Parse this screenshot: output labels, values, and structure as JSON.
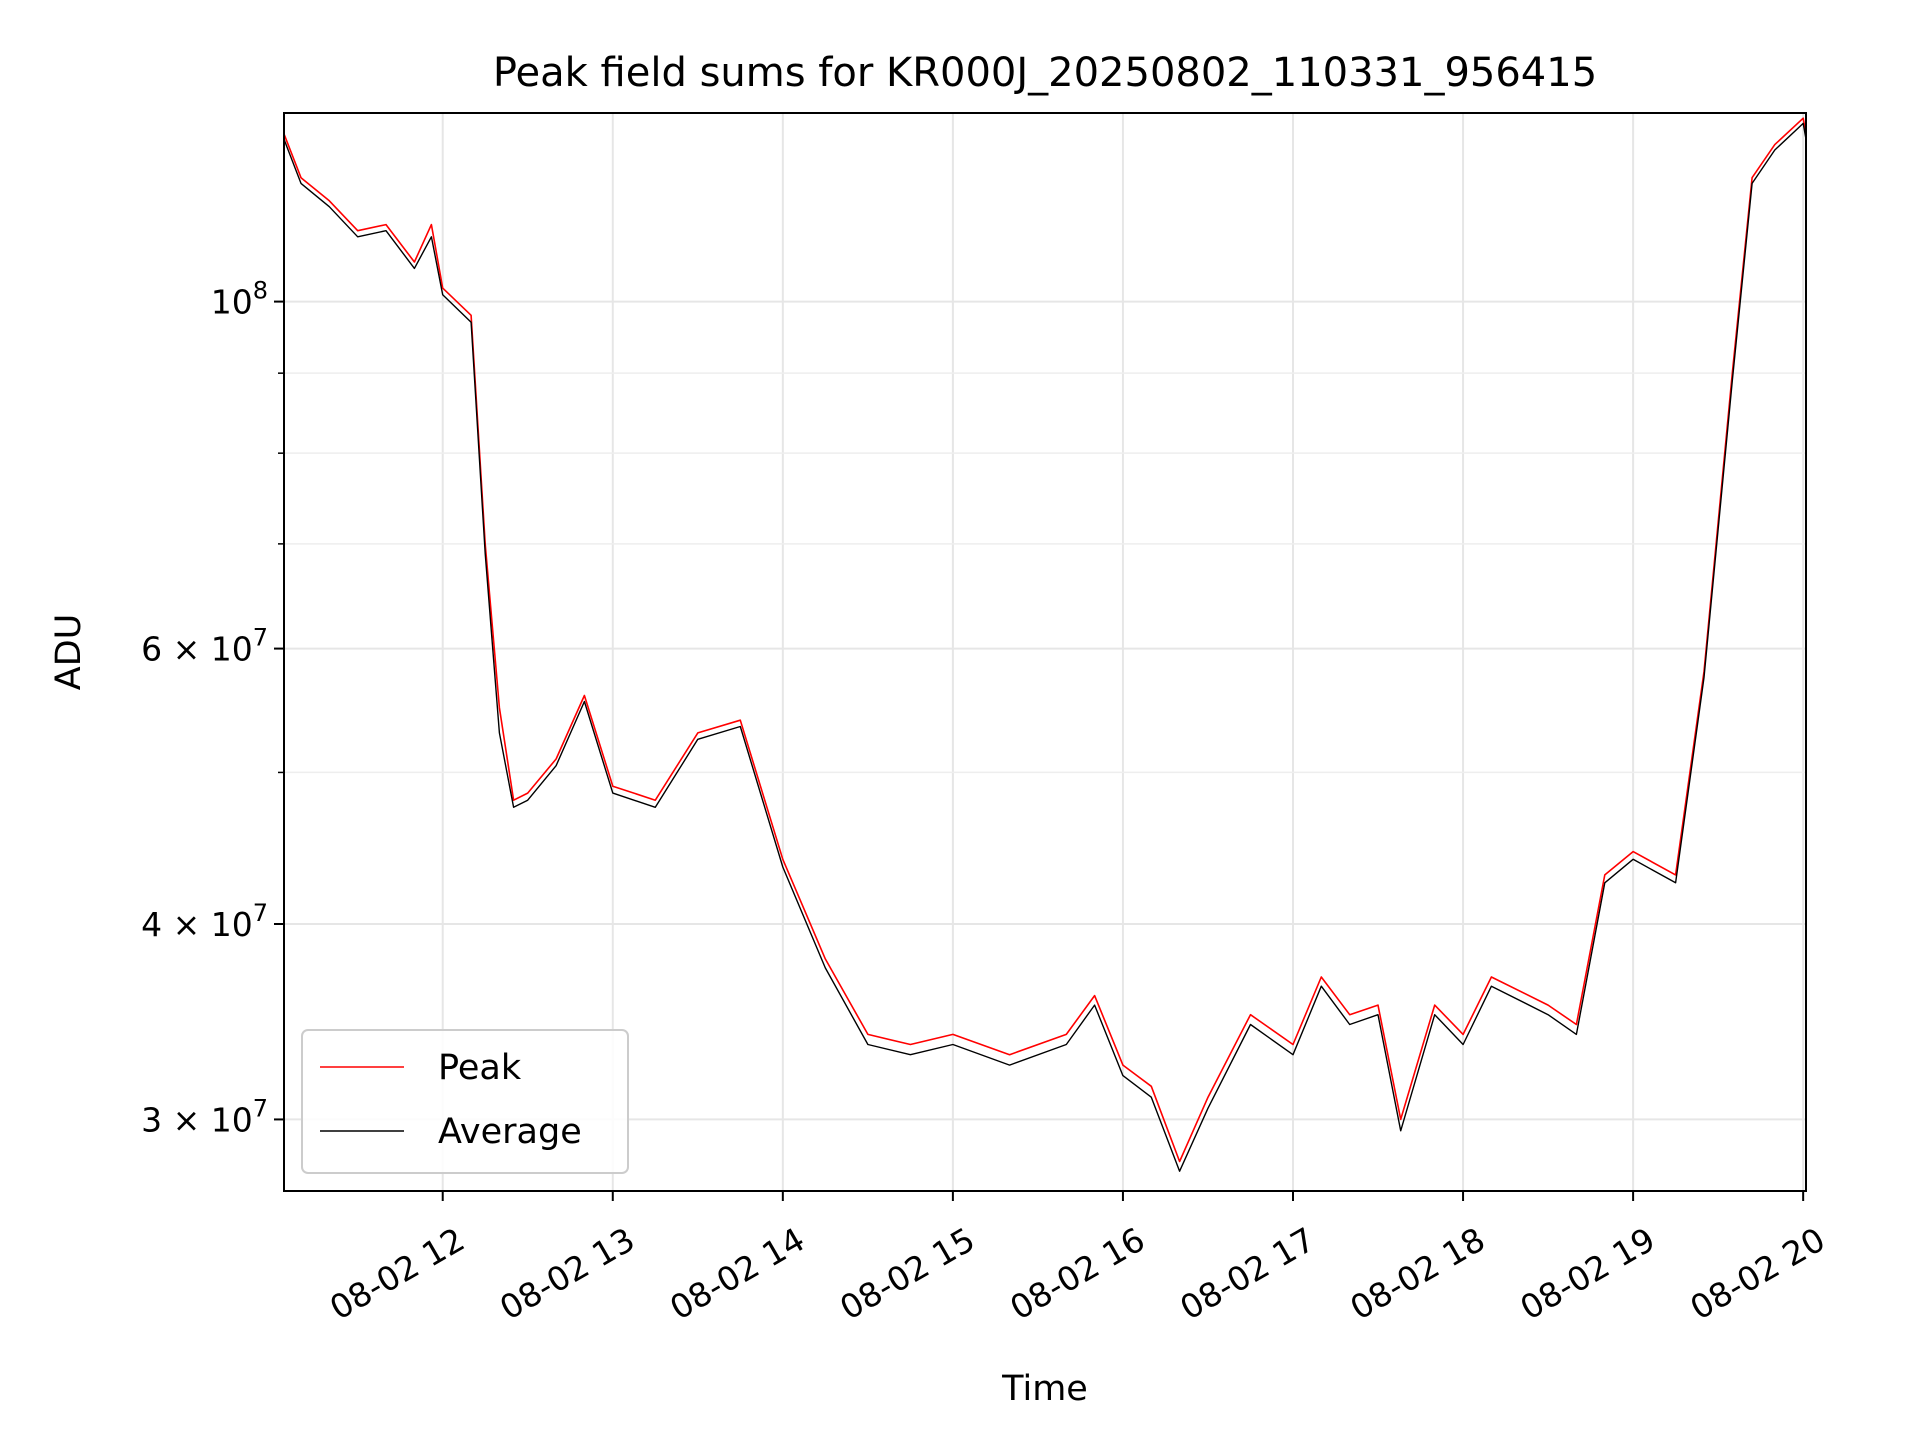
{
  "chart_data": {
    "type": "line",
    "title": "Peak field sums for KR000J_20250802_110331_956415",
    "xlabel": "Time",
    "ylabel": "ADU",
    "yscale": "log",
    "ylim": [
      27000000,
      132000000
    ],
    "xlim": [
      "08-02 11:04",
      "08-02 20:01"
    ],
    "grid": true,
    "legend_position": "lower-left",
    "x_ticks": [
      "08-02 12",
      "08-02 13",
      "08-02 14",
      "08-02 15",
      "08-02 16",
      "08-02 17",
      "08-02 18",
      "08-02 19",
      "08-02 20"
    ],
    "y_ticks": [
      {
        "value": 100000000,
        "base": "10",
        "exp": "8",
        "mult": ""
      },
      {
        "value": 60000000,
        "base": "10",
        "exp": "7",
        "mult": "6 × "
      },
      {
        "value": 40000000,
        "base": "10",
        "exp": "7",
        "mult": "4 × "
      },
      {
        "value": 30000000,
        "base": "10",
        "exp": "7",
        "mult": "3 × "
      }
    ],
    "y_minor": [
      50000000,
      70000000,
      80000000,
      90000000
    ],
    "series": [
      {
        "name": "Peak",
        "color": "#ff0000",
        "x": [
          "08-02 11:04",
          "08-02 11:10",
          "08-02 11:20",
          "08-02 11:30",
          "08-02 11:40",
          "08-02 11:50",
          "08-02 11:56",
          "08-02 12:00",
          "08-02 12:10",
          "08-02 12:15",
          "08-02 12:20",
          "08-02 12:25",
          "08-02 12:30",
          "08-02 12:40",
          "08-02 12:50",
          "08-02 13:00",
          "08-02 13:15",
          "08-02 13:30",
          "08-02 13:45",
          "08-02 14:00",
          "08-02 14:15",
          "08-02 14:30",
          "08-02 14:45",
          "08-02 15:00",
          "08-02 15:20",
          "08-02 15:40",
          "08-02 15:50",
          "08-02 16:00",
          "08-02 16:10",
          "08-02 16:20",
          "08-02 16:30",
          "08-02 16:45",
          "08-02 17:00",
          "08-02 17:10",
          "08-02 17:20",
          "08-02 17:30",
          "08-02 17:38",
          "08-02 17:50",
          "08-02 18:00",
          "08-02 18:10",
          "08-02 18:30",
          "08-02 18:40",
          "08-02 18:50",
          "08-02 19:00",
          "08-02 19:15",
          "08-02 19:25",
          "08-02 19:35",
          "08-02 19:42",
          "08-02 19:50",
          "08-02 20:00",
          "08-02 20:01"
        ],
        "values": [
          128000000,
          120000000,
          116000000,
          111000000,
          112000000,
          106000000,
          112000000,
          102000000,
          98000000,
          70000000,
          55000000,
          48000000,
          48500000,
          51000000,
          56000000,
          49000000,
          48000000,
          53000000,
          54000000,
          44000000,
          38000000,
          34000000,
          33500000,
          34000000,
          33000000,
          34000000,
          36000000,
          32500000,
          31500000,
          28200000,
          31000000,
          35000000,
          33500000,
          37000000,
          35000000,
          35500000,
          30000000,
          35500000,
          34000000,
          37000000,
          35500000,
          34500000,
          43000000,
          44500000,
          43000000,
          58000000,
          90000000,
          120000000,
          126000000,
          131000000,
          128000000
        ]
      },
      {
        "name": "Average",
        "color": "#000000",
        "x": [
          "08-02 11:04",
          "08-02 11:10",
          "08-02 11:20",
          "08-02 11:30",
          "08-02 11:40",
          "08-02 11:50",
          "08-02 11:56",
          "08-02 12:00",
          "08-02 12:10",
          "08-02 12:15",
          "08-02 12:20",
          "08-02 12:25",
          "08-02 12:30",
          "08-02 12:40",
          "08-02 12:50",
          "08-02 13:00",
          "08-02 13:15",
          "08-02 13:30",
          "08-02 13:45",
          "08-02 14:00",
          "08-02 14:15",
          "08-02 14:30",
          "08-02 14:45",
          "08-02 15:00",
          "08-02 15:20",
          "08-02 15:40",
          "08-02 15:50",
          "08-02 16:00",
          "08-02 16:10",
          "08-02 16:20",
          "08-02 16:30",
          "08-02 16:45",
          "08-02 17:00",
          "08-02 17:10",
          "08-02 17:20",
          "08-02 17:30",
          "08-02 17:38",
          "08-02 17:50",
          "08-02 18:00",
          "08-02 18:10",
          "08-02 18:30",
          "08-02 18:40",
          "08-02 18:50",
          "08-02 19:00",
          "08-02 19:15",
          "08-02 19:25",
          "08-02 19:35",
          "08-02 19:42",
          "08-02 19:50",
          "08-02 20:00",
          "08-02 20:01"
        ],
        "values": [
          127000000,
          119000000,
          115000000,
          110000000,
          111000000,
          105000000,
          110000000,
          101000000,
          97000000,
          69000000,
          53000000,
          47500000,
          48000000,
          50500000,
          55500000,
          48500000,
          47500000,
          52500000,
          53500000,
          43500000,
          37500000,
          33500000,
          33000000,
          33500000,
          32500000,
          33500000,
          35500000,
          32000000,
          31000000,
          27800000,
          30500000,
          34500000,
          33000000,
          36500000,
          34500000,
          35000000,
          29500000,
          35000000,
          33500000,
          36500000,
          35000000,
          34000000,
          42500000,
          44000000,
          42500000,
          57500000,
          89000000,
          119000000,
          125000000,
          130000000,
          127000000
        ]
      }
    ]
  }
}
